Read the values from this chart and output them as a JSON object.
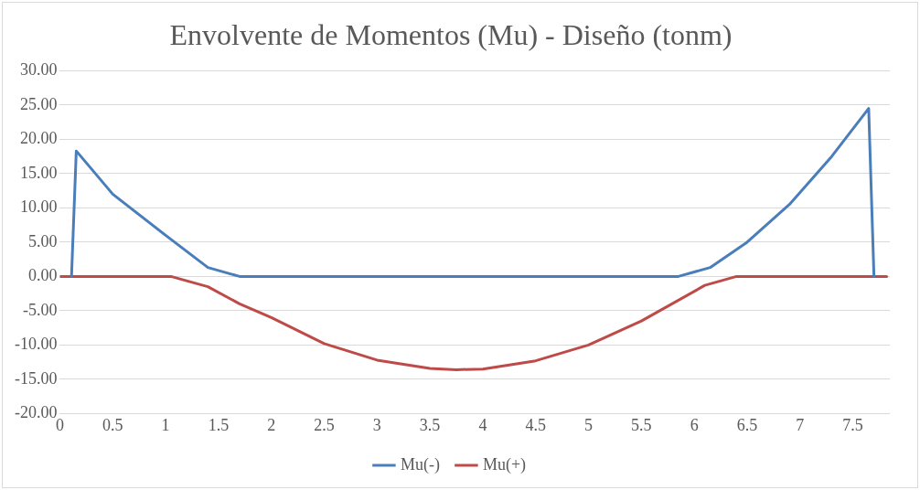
{
  "chart_data": {
    "type": "line",
    "title": "Envolvente de Momentos (Mu) - Diseño (tonm)",
    "xlim": [
      0,
      7.85
    ],
    "xticks": [
      0,
      0.5,
      1,
      1.5,
      2,
      2.5,
      3,
      3.5,
      4,
      4.5,
      5,
      5.5,
      6,
      6.5,
      7,
      7.5
    ],
    "ylim": [
      -20,
      30
    ],
    "yticks": [
      {
        "value": -20,
        "label": "-20.00"
      },
      {
        "value": -15,
        "label": "-15.00"
      },
      {
        "value": -10,
        "label": "-10.00"
      },
      {
        "value": -5,
        "label": "-5.00"
      },
      {
        "value": 0,
        "label": "0.00"
      },
      {
        "value": 5,
        "label": "5.00"
      },
      {
        "value": 10,
        "label": "10.00"
      },
      {
        "value": 15,
        "label": "15.00"
      },
      {
        "value": 20,
        "label": "20.00"
      },
      {
        "value": 25,
        "label": "25.00"
      },
      {
        "value": 30,
        "label": "30.00"
      }
    ],
    "grid": "y",
    "legend": "bottom",
    "marker": "none",
    "line_style": "solid",
    "series": [
      {
        "name": "Mu(-)",
        "color": "#4a7ebb",
        "x": [
          0.11,
          0.155,
          0.5,
          1,
          1.4,
          1.7,
          5.85,
          6.15,
          6.5,
          6.9,
          7.3,
          7.65,
          7.7
        ],
        "values": [
          0,
          18.3,
          12,
          6,
          1.3,
          0,
          0,
          1.3,
          5,
          10.5,
          17.5,
          24.5,
          0
        ]
      },
      {
        "name": "Mu(+)",
        "color": "#be4b48",
        "x": [
          0,
          1.05,
          1.4,
          1.7,
          2,
          2.5,
          3,
          3.5,
          3.75,
          4,
          4.5,
          5,
          5.5,
          6.1,
          6.4,
          7.82
        ],
        "values": [
          0,
          0,
          -1.5,
          -4,
          -6,
          -9.8,
          -12.2,
          -13.4,
          -13.6,
          -13.5,
          -12.3,
          -10,
          -6.5,
          -1.3,
          0,
          0
        ]
      }
    ]
  }
}
